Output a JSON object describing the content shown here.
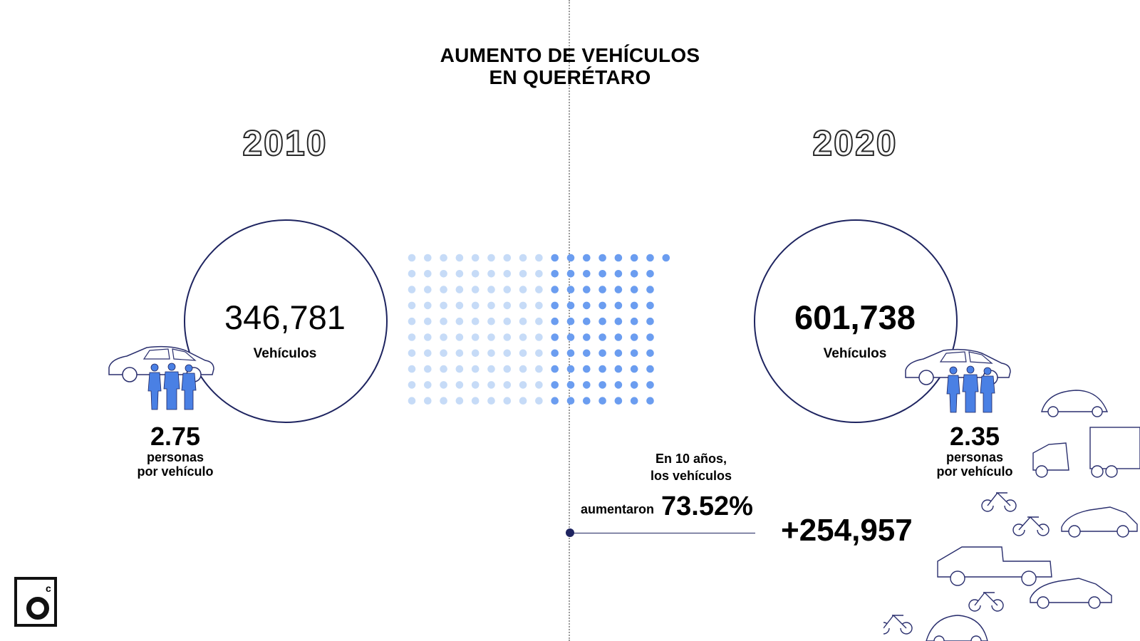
{
  "title": {
    "line1": "AUMENTO DE VEHÍCULOS",
    "line2": "EN QUERÉTARO"
  },
  "years": {
    "left": "2010",
    "right": "2020"
  },
  "left": {
    "count": "346,781",
    "count_label": "Vehículos",
    "ratio": "2.75",
    "ratio_label_1": "personas",
    "ratio_label_2": "por vehículo"
  },
  "right": {
    "count": "601,738",
    "count_label": "Vehículos",
    "ratio": "2.35",
    "ratio_label_1": "personas",
    "ratio_label_2": "por vehículo"
  },
  "change": {
    "line1": "En 10 años,",
    "line2": "los vehículos",
    "verb": "aumentaron",
    "percent": "73.52%",
    "delta": "+254,957"
  },
  "dot_grid": {
    "light_dots": 90,
    "dark_dots": 71,
    "light_color": "#c6dbf7",
    "dark_color": "#6b9df0"
  },
  "colors": {
    "circle_border": "#1e2460",
    "people": "#4a80e4",
    "line_art": "#2a2f6e"
  },
  "icons": [
    "car-icon",
    "people-icon",
    "vw-beetle-icon",
    "semi-truck-icon",
    "motorcycle-icon",
    "pickup-truck-icon",
    "logo-icon"
  ]
}
